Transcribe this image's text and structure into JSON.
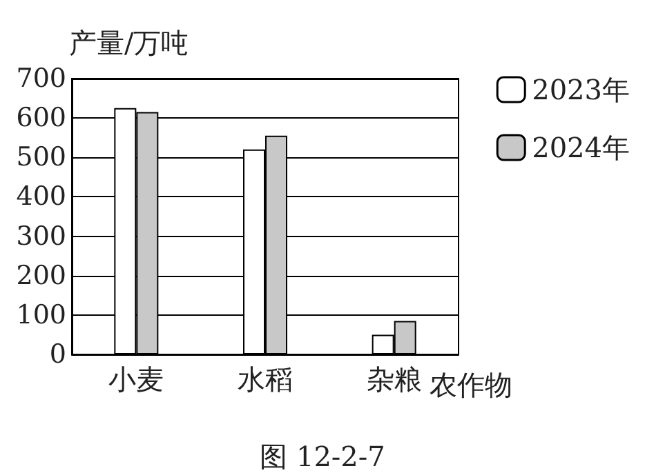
{
  "chart_data": {
    "type": "bar",
    "ylabel": "产量/万吨",
    "xlabel": "农作物",
    "categories": [
      "小麦",
      "水稻",
      "杂粮"
    ],
    "series": [
      {
        "name": "2023年",
        "color": "#ffffff",
        "values": [
          625,
          520,
          50
        ]
      },
      {
        "name": "2024年",
        "color": "#c8c8c8",
        "values": [
          615,
          555,
          85
        ]
      }
    ],
    "ylim": [
      0,
      700
    ],
    "yticks": [
      0,
      100,
      200,
      300,
      400,
      500,
      600,
      700
    ],
    "grid": "y",
    "legend": "right",
    "annotations": [
      "图 12-2-7"
    ]
  }
}
